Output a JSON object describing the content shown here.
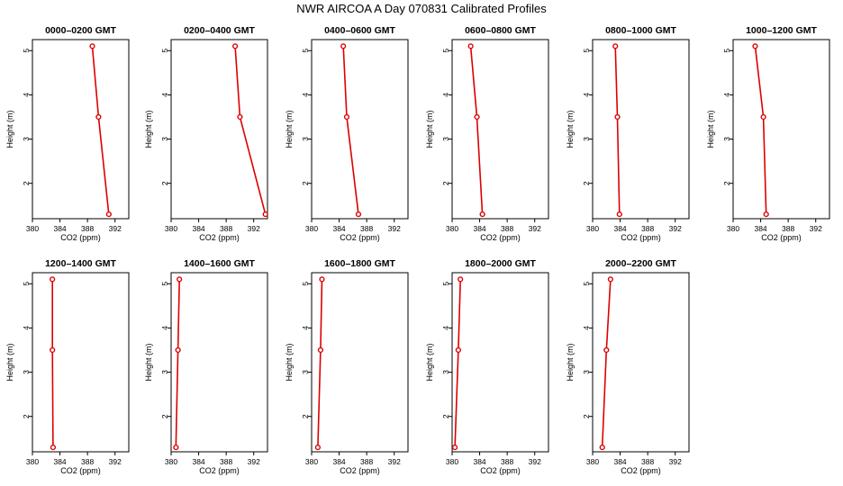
{
  "figure": {
    "title": "NWR AIRCOA A  Day 070831  Calibrated Profiles"
  },
  "colors": {
    "series": "#dd0000",
    "axis": "#000000",
    "background": "#ffffff"
  },
  "chart_data": [
    {
      "type": "line",
      "title": "0000–0200 GMT",
      "xlabel": "CO2 (ppm)",
      "ylabel": "Height (m)",
      "xlim": [
        380,
        394
      ],
      "ylim": [
        1.2,
        5.25
      ],
      "xticks": [
        380,
        384,
        388,
        392
      ],
      "yticks": [
        2,
        3,
        4,
        5
      ],
      "grid": false,
      "points": [
        {
          "x": 388.7,
          "y": 5.1
        },
        {
          "x": 389.6,
          "y": 3.5
        },
        {
          "x": 391.1,
          "y": 1.3
        }
      ]
    },
    {
      "type": "line",
      "title": "0200–0400 GMT",
      "xlabel": "CO2 (ppm)",
      "ylabel": "Height (m)",
      "xlim": [
        380,
        394
      ],
      "ylim": [
        1.2,
        5.25
      ],
      "xticks": [
        380,
        384,
        388,
        392
      ],
      "yticks": [
        2,
        3,
        4,
        5
      ],
      "grid": false,
      "points": [
        {
          "x": 389.3,
          "y": 5.1
        },
        {
          "x": 390.0,
          "y": 3.5
        },
        {
          "x": 393.7,
          "y": 1.3
        }
      ]
    },
    {
      "type": "line",
      "title": "0400–0600 GMT",
      "xlabel": "CO2 (ppm)",
      "ylabel": "Height (m)",
      "xlim": [
        380,
        394
      ],
      "ylim": [
        1.2,
        5.25
      ],
      "xticks": [
        380,
        384,
        388,
        392
      ],
      "yticks": [
        2,
        3,
        4,
        5
      ],
      "grid": false,
      "points": [
        {
          "x": 384.6,
          "y": 5.1
        },
        {
          "x": 385.1,
          "y": 3.5
        },
        {
          "x": 386.8,
          "y": 1.3
        }
      ]
    },
    {
      "type": "line",
      "title": "0600–0800 GMT",
      "xlabel": "CO2 (ppm)",
      "ylabel": "Height (m)",
      "xlim": [
        380,
        394
      ],
      "ylim": [
        1.2,
        5.25
      ],
      "xticks": [
        380,
        384,
        388,
        392
      ],
      "yticks": [
        2,
        3,
        4,
        5
      ],
      "grid": false,
      "points": [
        {
          "x": 382.7,
          "y": 5.1
        },
        {
          "x": 383.6,
          "y": 3.5
        },
        {
          "x": 384.4,
          "y": 1.3
        }
      ]
    },
    {
      "type": "line",
      "title": "0800–1000 GMT",
      "xlabel": "CO2 (ppm)",
      "ylabel": "Height (m)",
      "xlim": [
        380,
        394
      ],
      "ylim": [
        1.2,
        5.25
      ],
      "xticks": [
        380,
        384,
        388,
        392
      ],
      "yticks": [
        2,
        3,
        4,
        5
      ],
      "grid": false,
      "points": [
        {
          "x": 383.3,
          "y": 5.1
        },
        {
          "x": 383.6,
          "y": 3.5
        },
        {
          "x": 383.9,
          "y": 1.3
        }
      ]
    },
    {
      "type": "line",
      "title": "1000–1200 GMT",
      "xlabel": "CO2 (ppm)",
      "ylabel": "Height (m)",
      "xlim": [
        380,
        394
      ],
      "ylim": [
        1.2,
        5.25
      ],
      "xticks": [
        380,
        384,
        388,
        392
      ],
      "yticks": [
        2,
        3,
        4,
        5
      ],
      "grid": false,
      "points": [
        {
          "x": 383.2,
          "y": 5.1
        },
        {
          "x": 384.4,
          "y": 3.5
        },
        {
          "x": 384.8,
          "y": 1.3
        }
      ]
    },
    {
      "type": "line",
      "title": "1200–1400 GMT",
      "xlabel": "CO2 (ppm)",
      "ylabel": "Height (m)",
      "xlim": [
        380,
        394
      ],
      "ylim": [
        1.2,
        5.25
      ],
      "xticks": [
        380,
        384,
        388,
        392
      ],
      "yticks": [
        2,
        3,
        4,
        5
      ],
      "grid": false,
      "points": [
        {
          "x": 382.9,
          "y": 5.1
        },
        {
          "x": 382.9,
          "y": 3.5
        },
        {
          "x": 383.0,
          "y": 1.3
        }
      ]
    },
    {
      "type": "line",
      "title": "1400–1600 GMT",
      "xlabel": "CO2 (ppm)",
      "ylabel": "Height (m)",
      "xlim": [
        380,
        394
      ],
      "ylim": [
        1.2,
        5.25
      ],
      "xticks": [
        380,
        384,
        388,
        392
      ],
      "yticks": [
        2,
        3,
        4,
        5
      ],
      "grid": false,
      "points": [
        {
          "x": 381.2,
          "y": 5.1
        },
        {
          "x": 381.0,
          "y": 3.5
        },
        {
          "x": 380.7,
          "y": 1.3
        }
      ]
    },
    {
      "type": "line",
      "title": "1600–1800 GMT",
      "xlabel": "CO2 (ppm)",
      "ylabel": "Height (m)",
      "xlim": [
        380,
        394
      ],
      "ylim": [
        1.2,
        5.25
      ],
      "xticks": [
        380,
        384,
        388,
        392
      ],
      "yticks": [
        2,
        3,
        4,
        5
      ],
      "grid": false,
      "points": [
        {
          "x": 381.5,
          "y": 5.1
        },
        {
          "x": 381.3,
          "y": 3.5
        },
        {
          "x": 380.9,
          "y": 1.3
        }
      ]
    },
    {
      "type": "line",
      "title": "1800–2000 GMT",
      "xlabel": "CO2 (ppm)",
      "ylabel": "Height (m)",
      "xlim": [
        380,
        394
      ],
      "ylim": [
        1.2,
        5.25
      ],
      "xticks": [
        380,
        384,
        388,
        392
      ],
      "yticks": [
        2,
        3,
        4,
        5
      ],
      "grid": false,
      "points": [
        {
          "x": 381.2,
          "y": 5.1
        },
        {
          "x": 380.9,
          "y": 3.5
        },
        {
          "x": 380.4,
          "y": 1.3
        }
      ]
    },
    {
      "type": "line",
      "title": "2000–2200 GMT",
      "xlabel": "CO2 (ppm)",
      "ylabel": "Height (m)",
      "xlim": [
        380,
        394
      ],
      "ylim": [
        1.2,
        5.25
      ],
      "xticks": [
        380,
        384,
        388,
        392
      ],
      "yticks": [
        2,
        3,
        4,
        5
      ],
      "grid": false,
      "points": [
        {
          "x": 382.6,
          "y": 5.1
        },
        {
          "x": 382.0,
          "y": 3.5
        },
        {
          "x": 381.4,
          "y": 1.3
        }
      ]
    }
  ]
}
